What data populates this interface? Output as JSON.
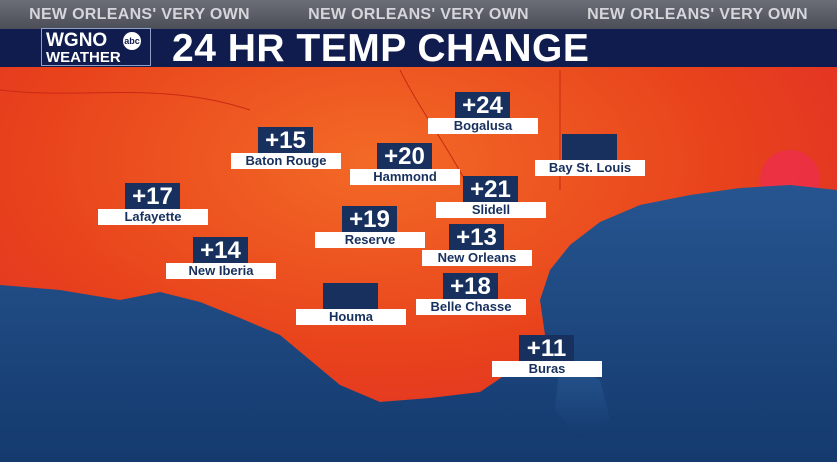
{
  "banner": {
    "tagline": [
      "NEW ORLEANS' VERY OWN",
      "NEW ORLEANS' VERY OWN",
      "NEW ORLEANS' VERY OWN"
    ]
  },
  "logo": {
    "name": "WGNO",
    "network": "abc",
    "section": "WEATHER"
  },
  "title": "24 HR TEMP CHANGE",
  "cities": [
    {
      "name": "Bogalusa",
      "value": "+24"
    },
    {
      "name": "Baton Rouge",
      "value": "+15"
    },
    {
      "name": "Hammond",
      "value": "+20"
    },
    {
      "name": "Bay St. Louis"
    },
    {
      "name": "Lafayette",
      "value": "+17"
    },
    {
      "name": "Slidell",
      "value": "+21"
    },
    {
      "name": "Reserve",
      "value": "+19"
    },
    {
      "name": "New Orleans",
      "value": "+13"
    },
    {
      "name": "New Iberia",
      "value": "+14"
    },
    {
      "name": "Belle Chasse",
      "value": "+18"
    },
    {
      "name": "Houma"
    },
    {
      "name": "Buras",
      "value": "+11"
    }
  ]
}
